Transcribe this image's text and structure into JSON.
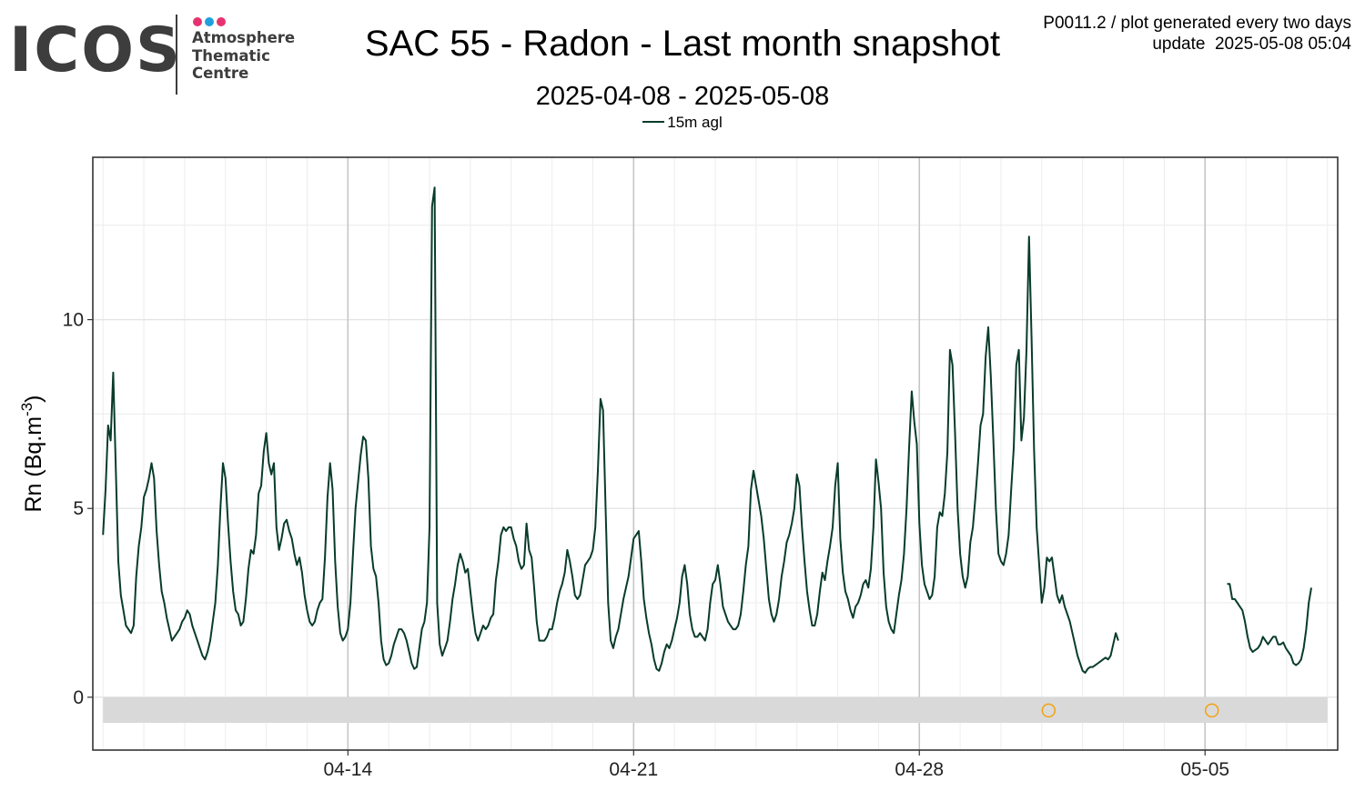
{
  "logo": {
    "wordmark": "ICOS",
    "subtitle_lines": [
      "Atmosphere",
      "Thematic",
      "Centre"
    ],
    "dot_colors": [
      "#e6336f",
      "#1ea0dc",
      "#e6336f"
    ],
    "text_color": "#3d3d3d"
  },
  "meta": {
    "line1": "P0011.2 / plot generated every two days",
    "line2": "update  2025-05-08 05:04"
  },
  "chart_data": {
    "type": "line",
    "title": "SAC 55 - Radon - Last month snapshot",
    "subtitle": "2025-04-08 - 2025-05-08",
    "ylabel": "Rn (Bq.m",
    "ylabel_superscript": "-3",
    "ylabel_suffix": ")",
    "xlabel": "",
    "x_start": "2025-04-08T00:00",
    "x_end": "2025-05-08T00:00",
    "xlim": [
      "2025-04-07T18:00",
      "2025-05-08T06:00"
    ],
    "ylim": [
      -1.4,
      14.3
    ],
    "yticks": [
      0,
      5,
      10
    ],
    "xticks": [
      {
        "date": "2025-04-14",
        "label": "04-14"
      },
      {
        "date": "2025-04-21",
        "label": "04-21"
      },
      {
        "date": "2025-04-28",
        "label": "04-28"
      },
      {
        "date": "2025-05-05",
        "label": "05-05"
      }
    ],
    "grid": true,
    "legend_position": "top",
    "series": [
      {
        "name": "15m agl",
        "color": "#083b2c",
        "values": [
          [
            4.3,
            5.5,
            7.2,
            6.8,
            8.6,
            6.1,
            3.6,
            2.7,
            2.3,
            1.9,
            1.8,
            1.7,
            1.9,
            3.2,
            4.0,
            4.5,
            5.3,
            5.5,
            5.8,
            6.2,
            5.8,
            4.4,
            3.5,
            2.8,
            2.5,
            2.1,
            1.8,
            1.5,
            1.6,
            1.7,
            1.8,
            2.0,
            2.1,
            2.3,
            2.2,
            1.9,
            1.7,
            1.5,
            1.3,
            1.1,
            1.0,
            1.2,
            1.5,
            2.0,
            2.5,
            3.5,
            5.0,
            6.2,
            5.8,
            4.6,
            3.6,
            2.8,
            2.3,
            2.2,
            1.9,
            2.0,
            2.6,
            3.4,
            3.9,
            3.8,
            4.3,
            5.4,
            5.6,
            6.5,
            7.0,
            6.2,
            5.9,
            6.2,
            4.5,
            3.9,
            4.2,
            4.6,
            4.7,
            4.4,
            4.2,
            3.8,
            3.5,
            3.7,
            3.3,
            2.7,
            2.3,
            2.0,
            1.9,
            2.0,
            2.3,
            2.5,
            2.6,
            3.7,
            5.3,
            6.2,
            5.5,
            3.6,
            2.4,
            1.7,
            1.5,
            1.6,
            1.8,
            2.5,
            3.8,
            5.0,
            5.7,
            6.4,
            6.9,
            6.8,
            5.8,
            4.0,
            3.4,
            3.2,
            2.5,
            1.5,
            1.0,
            0.85,
            0.9,
            1.1,
            1.4,
            1.6,
            1.8,
            1.8,
            1.7,
            1.5,
            1.2,
            0.9,
            0.75,
            0.8,
            1.3,
            1.8,
            2.0,
            2.5,
            4.5,
            13.0,
            13.5,
            2.5,
            1.4,
            1.1,
            1.3,
            1.5,
            2.0,
            2.6,
            3.0,
            3.5,
            3.8,
            3.6,
            3.3,
            3.4,
            2.8,
            2.2,
            1.7,
            1.5,
            1.7,
            1.9,
            1.8,
            1.9,
            2.1,
            2.2,
            3.1,
            3.6,
            4.3,
            4.5,
            4.4,
            4.5,
            4.5,
            4.2,
            4.0,
            3.6,
            3.4,
            3.5,
            4.6,
            3.9,
            3.7,
            2.9,
            2.0,
            1.5,
            1.5,
            1.5,
            1.6,
            1.8,
            1.8,
            2.1,
            2.5,
            2.8,
            3.0,
            3.3,
            3.9,
            3.6,
            3.2,
            2.7,
            2.6,
            2.7,
            3.1,
            3.5,
            3.6,
            3.7,
            3.9,
            4.5,
            6.0,
            7.9,
            7.6,
            5.0,
            2.5,
            1.5,
            1.3,
            1.6,
            1.8,
            2.2,
            2.6,
            2.9,
            3.2,
            3.7,
            4.2,
            4.3,
            4.4,
            3.6,
            2.6,
            2.1,
            1.7,
            1.4,
            1.0,
            0.75,
            0.7,
            0.9,
            1.2,
            1.4,
            1.3,
            1.5,
            1.8,
            2.1,
            2.5,
            3.2,
            3.5,
            3.0,
            2.2,
            1.8,
            1.6,
            1.6,
            1.7,
            1.6,
            1.5,
            1.8,
            2.5,
            3.0,
            3.1,
            3.5,
            3.0,
            2.4,
            2.2,
            2.0,
            1.9,
            1.8,
            1.8,
            1.9,
            2.2,
            2.8,
            3.5,
            4.0,
            5.5,
            6.0,
            5.6,
            5.2,
            4.8,
            4.2,
            3.4,
            2.6,
            2.2,
            2.0,
            2.2,
            2.6,
            3.2,
            3.6,
            4.1,
            4.3,
            4.6,
            5.0,
            5.9,
            5.6,
            4.5,
            3.6,
            2.8,
            2.3,
            1.9,
            1.9,
            2.2,
            2.8,
            3.3,
            3.1,
            3.6,
            4.0,
            4.5,
            5.6,
            6.2,
            4.2,
            3.3,
            2.8,
            2.6,
            2.3,
            2.1,
            2.4,
            2.5,
            2.7,
            3.0,
            3.1,
            2.9,
            3.4,
            4.5,
            6.3,
            5.7,
            5.0,
            3.3,
            2.4,
            2.0,
            1.8,
            1.7,
            2.2,
            2.7,
            3.1,
            3.8,
            5.0,
            6.6,
            8.1,
            7.3,
            6.7,
            4.6,
            3.5,
            3.0,
            2.8,
            2.6,
            2.7,
            3.2,
            4.5,
            4.9,
            4.8,
            5.4,
            6.5,
            9.2,
            8.8,
            7.0,
            5.0,
            3.8,
            3.2,
            2.9,
            3.2,
            4.1,
            4.5,
            5.3,
            6.2,
            7.2,
            7.5,
            9.0,
            9.8,
            8.5,
            6.8,
            5.0,
            3.8,
            3.6,
            3.5,
            3.8,
            4.3,
            5.5,
            6.6,
            8.8,
            9.2,
            6.8,
            7.4,
            9.2,
            12.2,
            9.5,
            6.5,
            4.5,
            3.5,
            2.5,
            2.9,
            3.7,
            3.6,
            3.7,
            3.2,
            2.7,
            2.5,
            2.7,
            2.4,
            2.2,
            2.0,
            1.7,
            1.4,
            1.1,
            0.9,
            0.7,
            0.65,
            0.75,
            0.8,
            0.8,
            0.85,
            0.9,
            0.95,
            1.0,
            1.05,
            1.0,
            1.1,
            1.4,
            1.7,
            1.5
          ],
          [
            3.0,
            3.0,
            2.6,
            2.6,
            2.5,
            2.4,
            2.3,
            2.0,
            1.6,
            1.3,
            1.2,
            1.25,
            1.3,
            1.4,
            1.6,
            1.5,
            1.4,
            1.5,
            1.6,
            1.6,
            1.4,
            1.4,
            1.45,
            1.3,
            1.2,
            1.1,
            0.9,
            0.85,
            0.9,
            1.0,
            1.3,
            1.8,
            2.5,
            2.9
          ]
        ],
        "segment_starts": [
          "2025-04-08T00:00",
          "2025-05-05T13:00"
        ],
        "step_hours": 1.5
      }
    ],
    "qc_band": {
      "ymin": -0.68,
      "ymax": 0.0,
      "color": "#d9d9d9"
    },
    "qc_flags": [
      {
        "x": "2025-05-01T04:00",
        "y": -0.35,
        "color": "#f2a30f"
      },
      {
        "x": "2025-05-05T04:00",
        "y": -0.35,
        "color": "#f2a30f"
      }
    ]
  }
}
